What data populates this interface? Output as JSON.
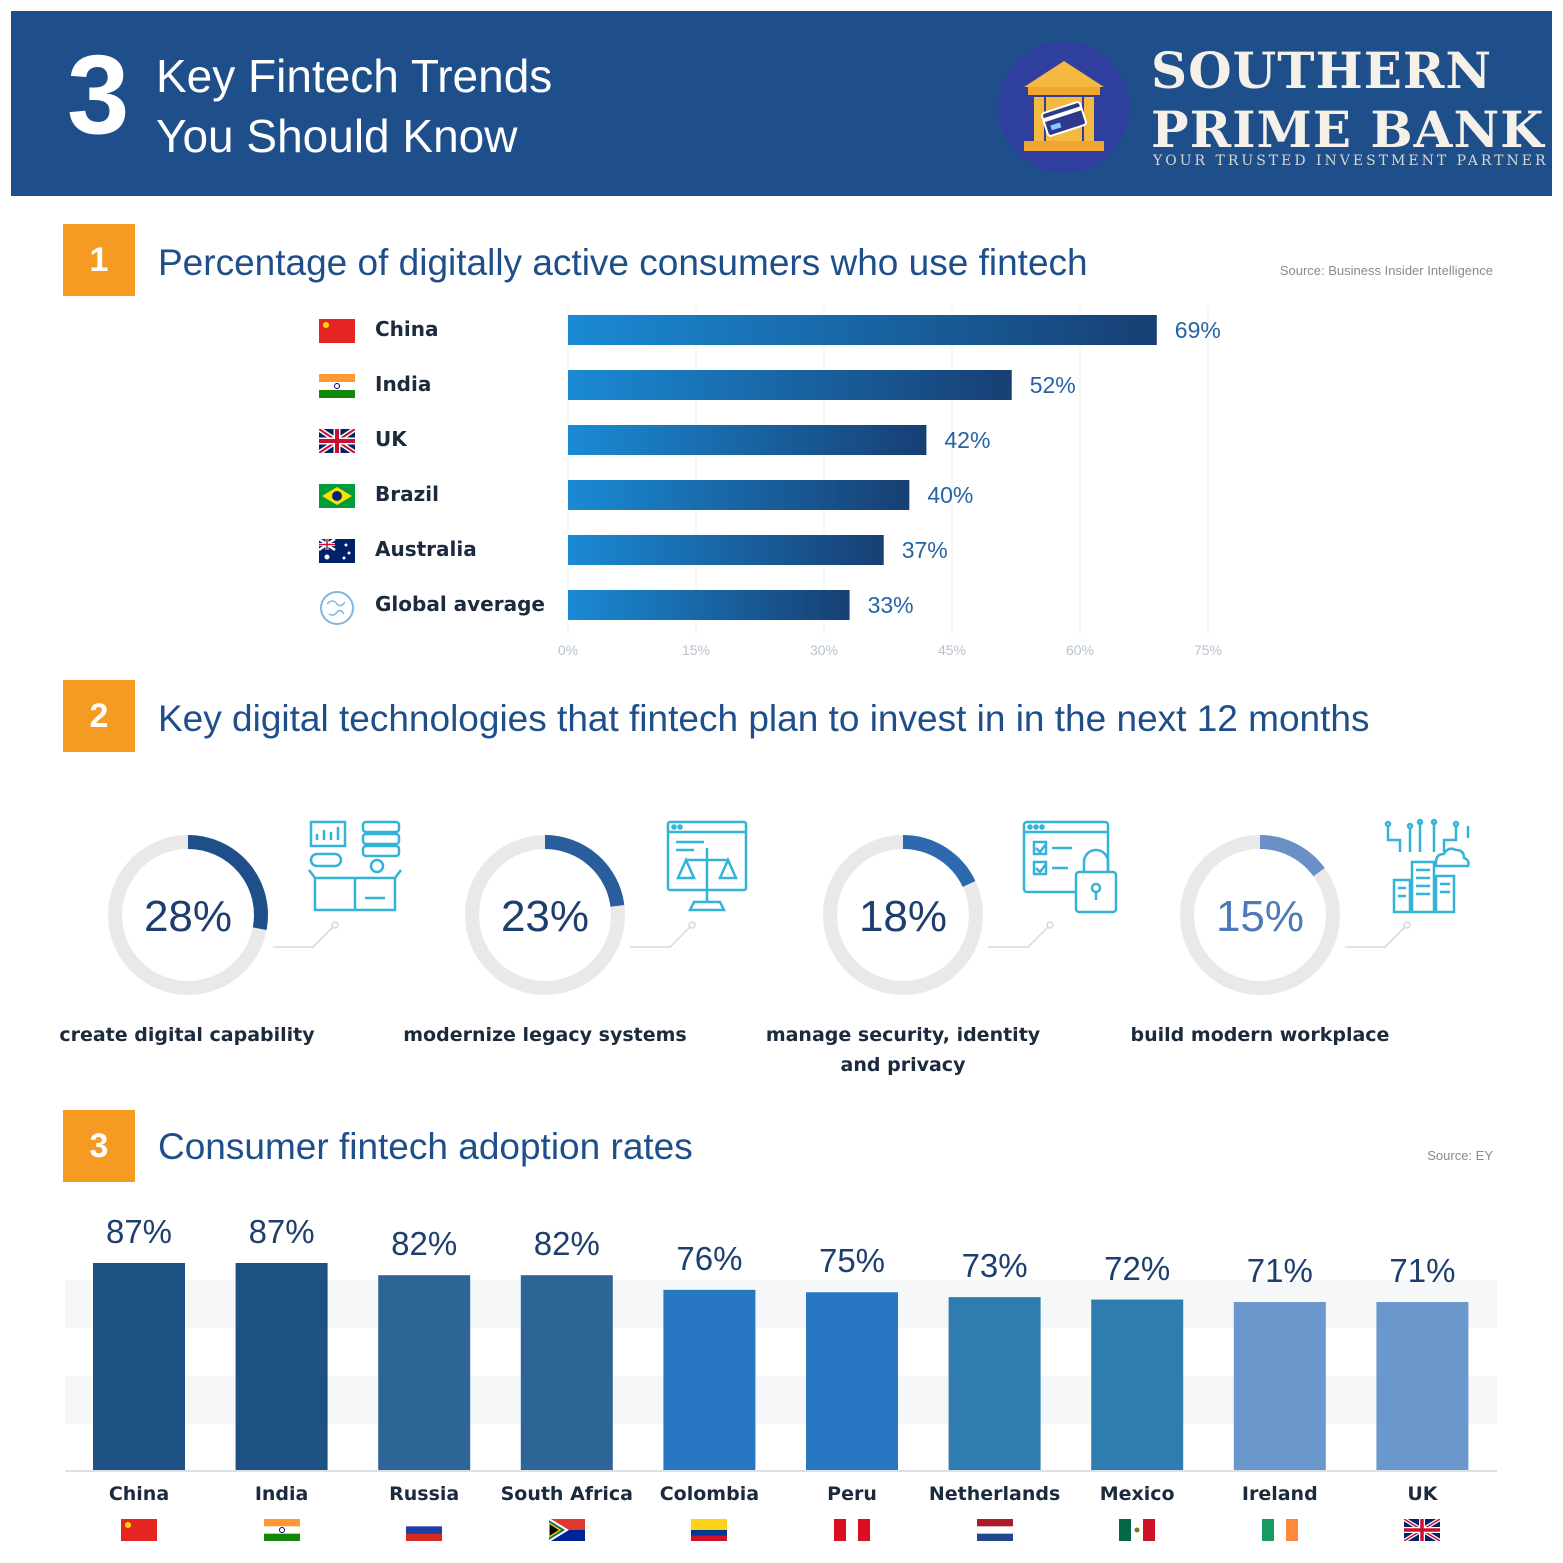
{
  "header": {
    "number": "3",
    "title_line1": "Key Fintech Trends",
    "title_line2": "You Should Know",
    "brand_line1": "SOUTHERN",
    "brand_line2": "PRIME BANK",
    "brand_tagline": "YOUR TRUSTED INVESTMENT PARTNER",
    "logo_icon": "bank-card-icon"
  },
  "section1": {
    "number": "1",
    "title": "Percentage of digitally active consumers who use fintech",
    "source": "Source: Business Insider Intelligence"
  },
  "section2": {
    "number": "2",
    "title": "Key digital technologies that fintech plan to invest in in the next 12 months",
    "items": [
      {
        "value": 28,
        "value_label": "28%",
        "label_line1": "create digital capability",
        "label_line2": "",
        "icon": "analytics-box-icon",
        "color": "#1f4f8b"
      },
      {
        "value": 23,
        "value_label": "23%",
        "label_line1": "modernize legacy systems",
        "label_line2": "",
        "icon": "legal-scale-browser-icon",
        "color": "#2a5d9b"
      },
      {
        "value": 18,
        "value_label": "18%",
        "label_line1": "manage security, identity",
        "label_line2": "and privacy",
        "icon": "security-lock-checklist-icon",
        "color": "#2e69b0"
      },
      {
        "value": 15,
        "value_label": "15%",
        "label_line1": "build modern workplace",
        "label_line2": "",
        "icon": "smart-city-icon",
        "color": "#6a90c6"
      }
    ]
  },
  "section3": {
    "number": "3",
    "title": "Consumer fintech adoption rates",
    "source": "Source: EY"
  },
  "chart_data": [
    {
      "type": "bar",
      "orientation": "horizontal",
      "categories": [
        "China",
        "India",
        "UK",
        "Brazil",
        "Australia",
        "Global average"
      ],
      "values": [
        69,
        52,
        42,
        40,
        37,
        33
      ],
      "value_labels": [
        "69%",
        "52%",
        "42%",
        "40%",
        "37%",
        "33%"
      ],
      "xlim": [
        0,
        75
      ],
      "x_ticks": [
        "0%",
        "15%",
        "30%",
        "45%",
        "60%",
        "75%"
      ],
      "grid": true,
      "color_start": "#1a8ad4",
      "color_end": "#173f73"
    },
    {
      "type": "bar",
      "orientation": "vertical",
      "categories": [
        "China",
        "India",
        "Russia",
        "South Africa",
        "Colombia",
        "Peru",
        "Netherlands",
        "Mexico",
        "Ireland",
        "UK"
      ],
      "values": [
        87,
        87,
        82,
        82,
        76,
        75,
        73,
        72,
        71,
        71
      ],
      "value_labels": [
        "87%",
        "87%",
        "82%",
        "82%",
        "76%",
        "75%",
        "73%",
        "72%",
        "71%",
        "71%"
      ],
      "colors": [
        "#1d5083",
        "#1d5083",
        "#2d6596",
        "#2d6596",
        "#2877c2",
        "#2877c2",
        "#2f7db0",
        "#2f7db0",
        "#6b98cc",
        "#6b98cc"
      ],
      "ylim": [
        0,
        100
      ],
      "grid": true
    }
  ]
}
